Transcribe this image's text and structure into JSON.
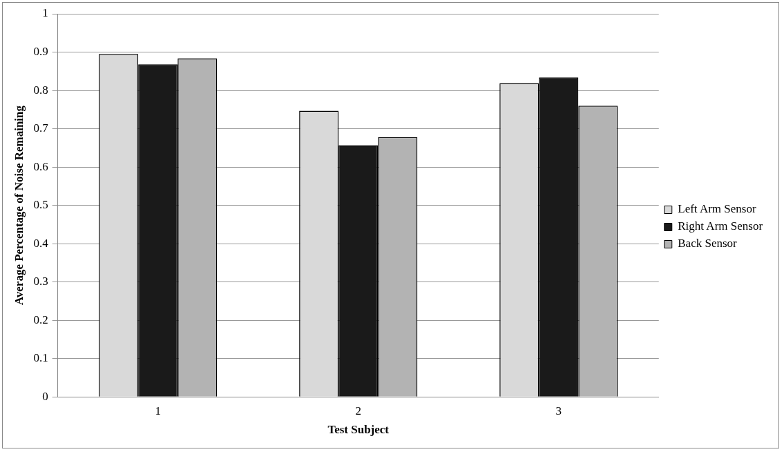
{
  "chart_data": {
    "type": "bar",
    "xlabel": "Test Subject",
    "ylabel": "Average Percentage of Noise Remaining",
    "categories": [
      "1",
      "2",
      "3"
    ],
    "series": [
      {
        "name": "Left Arm Sensor",
        "color": "#d9d9d9",
        "values": [
          0.895,
          0.747,
          0.819
        ]
      },
      {
        "name": "Right Arm Sensor",
        "color": "#1a1a1a",
        "values": [
          0.868,
          0.657,
          0.834
        ]
      },
      {
        "name": "Back Sensor",
        "color": "#b3b3b3",
        "values": [
          0.884,
          0.678,
          0.76
        ]
      }
    ],
    "ylim": [
      0,
      1
    ],
    "yticks": [
      0,
      0.1,
      0.2,
      0.3,
      0.4,
      0.5,
      0.6,
      0.7,
      0.8,
      0.9,
      1
    ],
    "grid": "y",
    "legend": "right"
  }
}
